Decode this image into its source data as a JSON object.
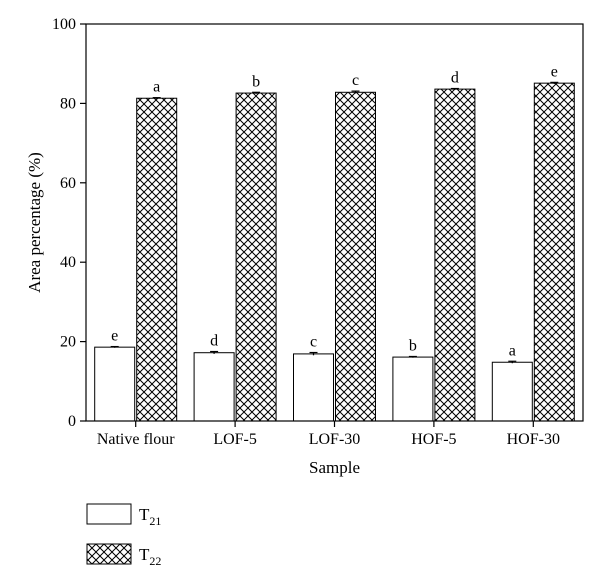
{
  "chart_data": {
    "type": "bar",
    "categories": [
      "Native flour",
      "LOF-5",
      "LOF-30",
      "HOF-5",
      "HOF-30"
    ],
    "series": [
      {
        "key": "T21",
        "name": "T21",
        "pattern": "none",
        "values": [
          18.6,
          17.2,
          16.9,
          16.1,
          14.8
        ],
        "errors": [
          0.15,
          0.3,
          0.35,
          0.15,
          0.25
        ],
        "letters": [
          "e",
          "d",
          "c",
          "b",
          "a"
        ]
      },
      {
        "key": "T22",
        "name": "T22",
        "pattern": "crosshatch",
        "values": [
          81.3,
          82.6,
          82.8,
          83.6,
          85.1
        ],
        "errors": [
          0.15,
          0.2,
          0.3,
          0.15,
          0.2
        ],
        "letters": [
          "a",
          "b",
          "c",
          "d",
          "e"
        ]
      }
    ],
    "ylabel": "Area percentage (%)",
    "xlabel": "Sample",
    "ylim": [
      0,
      100
    ],
    "yticks": [
      0,
      20,
      40,
      60,
      80,
      100
    ],
    "grid": false,
    "legend": {
      "placement": "bottom-left",
      "entries": [
        {
          "main": "T",
          "sub": "21"
        },
        {
          "main": "T",
          "sub": "22"
        }
      ]
    },
    "colors": {
      "bar_fill": "#ffffff",
      "stroke": "#000000"
    }
  }
}
